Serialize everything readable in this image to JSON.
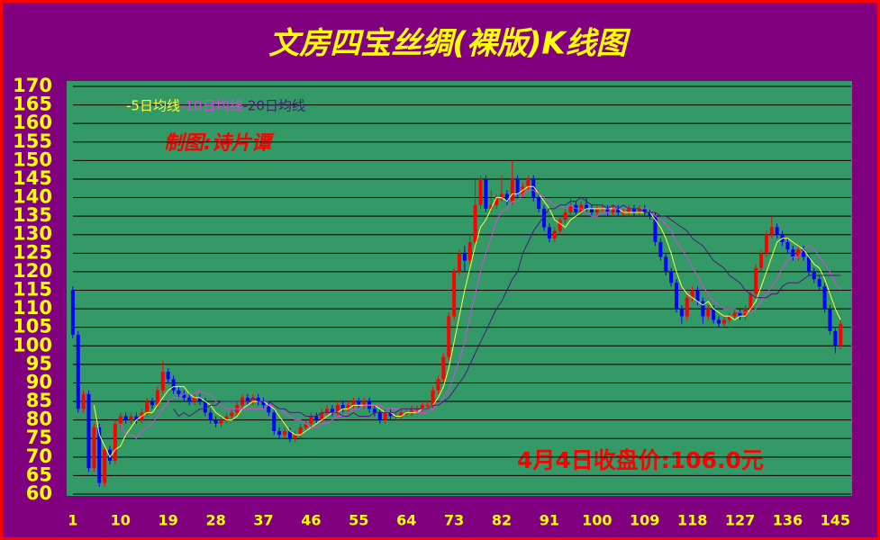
{
  "chart_data": {
    "type": "candlestick",
    "title": "文房四宝丝绸(裸版)K线图",
    "annotations": [
      "制图:诗片谭",
      "4月4日收盘价:106.0元"
    ],
    "up_color": "#ff0000",
    "down_color": "#0000ff",
    "grid": true,
    "xlim": [
      0,
      148
    ],
    "ylim": [
      60,
      170
    ],
    "xticks": [
      1,
      10,
      19,
      28,
      37,
      46,
      55,
      64,
      73,
      82,
      91,
      100,
      109,
      118,
      127,
      136,
      145
    ],
    "yticks": [
      60,
      65,
      70,
      75,
      80,
      85,
      90,
      95,
      100,
      105,
      110,
      115,
      120,
      125,
      130,
      135,
      140,
      145,
      150,
      155,
      160,
      165,
      170
    ],
    "x": [
      1,
      2,
      3,
      4,
      5,
      6,
      7,
      8,
      9,
      10,
      11,
      12,
      13,
      14,
      15,
      16,
      17,
      18,
      19,
      20,
      21,
      22,
      23,
      24,
      25,
      26,
      27,
      28,
      29,
      30,
      31,
      32,
      33,
      34,
      35,
      36,
      37,
      38,
      39,
      40,
      41,
      42,
      43,
      44,
      45,
      46,
      47,
      48,
      49,
      50,
      51,
      52,
      53,
      54,
      55,
      56,
      57,
      58,
      59,
      60,
      61,
      62,
      63,
      64,
      65,
      66,
      67,
      68,
      69,
      70,
      71,
      72,
      73,
      74,
      75,
      76,
      77,
      78,
      79,
      80,
      81,
      82,
      83,
      84,
      85,
      86,
      87,
      88,
      89,
      90,
      91,
      92,
      93,
      94,
      95,
      96,
      97,
      98,
      99,
      100,
      101,
      102,
      103,
      104,
      105,
      106,
      107,
      108,
      109,
      110,
      111,
      112,
      113,
      114,
      115,
      116,
      117,
      118,
      119,
      120,
      121,
      122,
      123,
      124,
      125,
      126,
      127,
      128,
      129,
      130,
      131,
      132,
      133,
      134,
      135,
      136,
      137,
      138,
      139,
      140,
      141,
      142,
      143,
      144,
      145,
      146
    ],
    "open": [
      115,
      103,
      83,
      87,
      67,
      78,
      63,
      72,
      69,
      79,
      81,
      80,
      81,
      80,
      82,
      85,
      84,
      88,
      93,
      91,
      88,
      87,
      86,
      85,
      86,
      85,
      82,
      80,
      79,
      80,
      81,
      82,
      84,
      86,
      85,
      86,
      85,
      84,
      82,
      77,
      76,
      77,
      75,
      76,
      78,
      79,
      81,
      80,
      82,
      83,
      82,
      84,
      83,
      84,
      85,
      84,
      85,
      83,
      82,
      80,
      82,
      81,
      81,
      82,
      82,
      83,
      83,
      84,
      84,
      88,
      91,
      97,
      108,
      120,
      125,
      123,
      128,
      138,
      145,
      137,
      138,
      140,
      141,
      139,
      145,
      141,
      143,
      145,
      140,
      137,
      132,
      129,
      131,
      134,
      136,
      138,
      136,
      138,
      137,
      136,
      137,
      137,
      136,
      137,
      136,
      136,
      137,
      136,
      137,
      136,
      135,
      128,
      124,
      120,
      117,
      110,
      108,
      113,
      115,
      112,
      108,
      110,
      107,
      106,
      107,
      108,
      109,
      108,
      110,
      114,
      121,
      125,
      130,
      132,
      130,
      128,
      126,
      124,
      126,
      124,
      120,
      118,
      116,
      110,
      104,
      100
    ],
    "high": [
      116,
      104,
      88,
      88,
      79,
      79,
      73,
      73,
      80,
      82,
      82,
      82,
      82,
      83,
      86,
      86,
      89,
      96,
      94,
      92,
      89,
      88,
      87,
      87,
      87,
      86,
      83,
      81,
      81,
      82,
      83,
      85,
      87,
      87,
      87,
      87,
      86,
      85,
      83,
      78,
      78,
      78,
      77,
      79,
      80,
      82,
      82,
      83,
      84,
      84,
      85,
      85,
      85,
      86,
      86,
      86,
      86,
      84,
      83,
      83,
      83,
      82,
      83,
      83,
      84,
      84,
      85,
      85,
      89,
      92,
      98,
      109,
      121,
      126,
      127,
      130,
      145,
      146,
      146,
      142,
      141,
      146,
      142,
      150,
      146,
      144,
      146,
      146,
      141,
      138,
      133,
      132,
      135,
      137,
      140,
      139,
      139,
      140,
      138,
      138,
      138,
      138,
      138,
      138,
      137,
      138,
      138,
      138,
      138,
      137,
      136,
      129,
      125,
      121,
      118,
      111,
      114,
      116,
      116,
      113,
      111,
      111,
      108,
      108,
      109,
      110,
      110,
      111,
      115,
      122,
      126,
      131,
      135,
      133,
      131,
      129,
      127,
      127,
      127,
      125,
      121,
      119,
      117,
      111,
      105,
      107
    ],
    "low": [
      102,
      82,
      82,
      66,
      66,
      62,
      62,
      68,
      68,
      78,
      79,
      79,
      79,
      79,
      81,
      83,
      83,
      87,
      90,
      87,
      86,
      85,
      84,
      84,
      84,
      81,
      79,
      78,
      78,
      79,
      80,
      81,
      83,
      84,
      84,
      84,
      83,
      81,
      76,
      75,
      75,
      74,
      74,
      75,
      77,
      78,
      79,
      79,
      81,
      81,
      81,
      82,
      82,
      83,
      83,
      83,
      82,
      81,
      79,
      79,
      80,
      80,
      80,
      81,
      81,
      82,
      82,
      83,
      83,
      87,
      90,
      96,
      107,
      119,
      120,
      122,
      127,
      137,
      136,
      136,
      137,
      139,
      138,
      138,
      140,
      140,
      142,
      139,
      136,
      131,
      128,
      128,
      130,
      133,
      135,
      135,
      135,
      136,
      135,
      135,
      136,
      135,
      135,
      135,
      135,
      135,
      135,
      135,
      135,
      134,
      127,
      123,
      119,
      116,
      109,
      106,
      107,
      112,
      111,
      106,
      107,
      106,
      105,
      105,
      106,
      107,
      107,
      107,
      109,
      113,
      120,
      124,
      129,
      129,
      127,
      125,
      123,
      123,
      123,
      119,
      117,
      115,
      109,
      103,
      98,
      99
    ],
    "close": [
      103,
      83,
      87,
      67,
      78,
      63,
      72,
      69,
      79,
      81,
      80,
      81,
      80,
      82,
      85,
      84,
      88,
      93,
      91,
      88,
      87,
      86,
      85,
      86,
      85,
      82,
      80,
      79,
      80,
      81,
      82,
      84,
      86,
      85,
      86,
      85,
      84,
      82,
      77,
      76,
      77,
      75,
      76,
      78,
      79,
      81,
      80,
      82,
      83,
      82,
      84,
      83,
      84,
      85,
      84,
      85,
      83,
      82,
      80,
      82,
      81,
      81,
      82,
      82,
      83,
      83,
      84,
      84,
      88,
      91,
      97,
      108,
      120,
      125,
      123,
      128,
      138,
      145,
      137,
      138,
      140,
      141,
      139,
      145,
      141,
      143,
      145,
      140,
      137,
      132,
      129,
      131,
      134,
      136,
      138,
      136,
      138,
      137,
      136,
      137,
      137,
      136,
      137,
      136,
      136,
      137,
      136,
      137,
      136,
      135,
      128,
      124,
      120,
      117,
      110,
      108,
      113,
      115,
      112,
      108,
      110,
      107,
      106,
      107,
      108,
      109,
      108,
      110,
      114,
      121,
      125,
      130,
      132,
      130,
      128,
      126,
      124,
      126,
      124,
      120,
      118,
      116,
      110,
      104,
      100,
      106
    ],
    "series": [
      {
        "name": "-5日均线",
        "color": "#ffff33",
        "values": [
          null,
          null,
          null,
          null,
          84,
          76,
          73,
          70,
          72,
          73,
          76,
          78,
          80,
          81,
          82,
          82,
          84,
          86,
          88,
          89,
          89,
          89,
          87,
          86,
          86,
          85,
          84,
          82,
          81,
          80,
          80,
          81,
          83,
          84,
          85,
          85,
          85,
          84,
          83,
          81,
          79,
          77,
          76,
          76,
          77,
          78,
          79,
          80,
          81,
          82,
          82,
          83,
          83,
          84,
          84,
          84,
          84,
          84,
          83,
          82,
          82,
          81,
          81,
          82,
          82,
          82,
          83,
          83,
          84,
          86,
          89,
          94,
          101,
          108,
          115,
          121,
          127,
          132,
          134,
          137,
          140,
          140,
          139,
          141,
          141,
          142,
          143,
          143,
          141,
          139,
          137,
          134,
          133,
          132,
          134,
          135,
          136,
          137,
          137,
          137,
          137,
          137,
          137,
          137,
          136,
          136,
          136,
          136,
          136,
          136,
          134,
          132,
          129,
          125,
          120,
          116,
          114,
          113,
          112,
          111,
          112,
          110,
          109,
          108,
          108,
          107,
          108,
          108,
          110,
          112,
          116,
          120,
          124,
          128,
          129,
          129,
          128,
          127,
          126,
          124,
          122,
          121,
          118,
          114,
          110,
          107
        ]
      },
      {
        "name": "-10日均线",
        "color": "#dd44dd",
        "values": [
          null,
          null,
          null,
          null,
          null,
          null,
          null,
          null,
          null,
          79,
          76,
          76,
          75,
          77,
          78,
          79,
          81,
          83,
          85,
          86,
          86,
          87,
          87,
          87,
          88,
          87,
          87,
          85,
          84,
          83,
          83,
          83,
          83,
          83,
          83,
          83,
          83,
          84,
          84,
          83,
          82,
          81,
          80,
          80,
          79,
          78,
          78,
          79,
          79,
          80,
          81,
          81,
          82,
          83,
          83,
          84,
          84,
          84,
          84,
          83,
          83,
          83,
          83,
          83,
          83,
          82,
          82,
          82,
          83,
          84,
          86,
          88,
          92,
          96,
          101,
          108,
          114,
          120,
          125,
          129,
          134,
          136,
          137,
          139,
          139,
          141,
          142,
          142,
          141,
          140,
          139,
          138,
          138,
          137,
          138,
          137,
          137,
          136,
          135,
          135,
          136,
          136,
          137,
          137,
          137,
          137,
          137,
          137,
          137,
          137,
          135,
          134,
          133,
          131,
          128,
          126,
          124,
          121,
          119,
          116,
          114,
          112,
          111,
          110,
          110,
          110,
          109,
          109,
          109,
          110,
          112,
          114,
          116,
          118,
          121,
          123,
          124,
          124,
          126,
          127,
          126,
          124,
          122,
          120,
          117,
          115
        ]
      },
      {
        "name": "-20日均线",
        "color": "#4b1a7a",
        "values": [
          null,
          null,
          null,
          null,
          null,
          null,
          null,
          null,
          null,
          null,
          null,
          null,
          null,
          null,
          null,
          null,
          null,
          null,
          null,
          83,
          81,
          82,
          81,
          82,
          83,
          83,
          84,
          84,
          85,
          85,
          85,
          85,
          85,
          85,
          86,
          85,
          85,
          85,
          84,
          83,
          83,
          82,
          82,
          82,
          81,
          81,
          81,
          82,
          82,
          82,
          82,
          81,
          81,
          82,
          81,
          81,
          81,
          82,
          82,
          82,
          82,
          82,
          83,
          83,
          83,
          83,
          83,
          83,
          84,
          84,
          85,
          86,
          88,
          90,
          92,
          95,
          98,
          101,
          104,
          107,
          110,
          112,
          115,
          118,
          120,
          125,
          128,
          131,
          133,
          135,
          137,
          137,
          138,
          138,
          139,
          139,
          140,
          139,
          138,
          138,
          138,
          137,
          138,
          137,
          138,
          137,
          137,
          137,
          136,
          136,
          136,
          135,
          135,
          134,
          133,
          132,
          131,
          129,
          128,
          127,
          125,
          123,
          122,
          121,
          119,
          118,
          117,
          115,
          114,
          113,
          113,
          113,
          114,
          114,
          116,
          117,
          117,
          117,
          118,
          119,
          119,
          119,
          119,
          119,
          119,
          119
        ]
      }
    ]
  }
}
